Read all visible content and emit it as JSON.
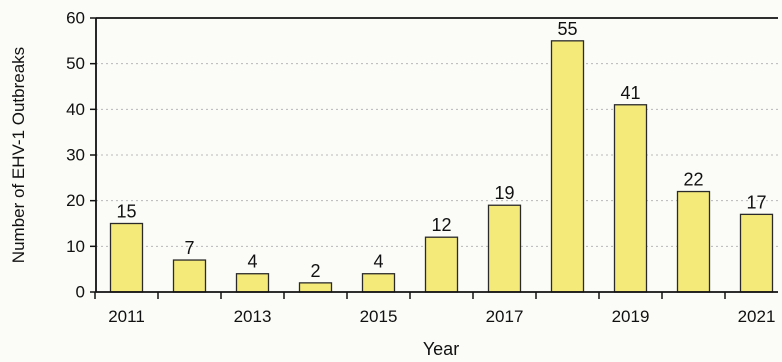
{
  "chart_data": {
    "type": "bar",
    "categories": [
      "2011",
      "2012",
      "2013",
      "2014",
      "2015",
      "2016",
      "2017",
      "2018",
      "2019",
      "2020",
      "2021"
    ],
    "values": [
      15,
      7,
      4,
      2,
      4,
      12,
      19,
      55,
      41,
      22,
      17
    ],
    "data_labels": [
      "15",
      "7",
      "4",
      "2",
      "4",
      "12",
      "19",
      "55",
      "41",
      "22",
      "17"
    ],
    "x_tick_labels": [
      "2011",
      "2013",
      "2015",
      "2017",
      "2019",
      "2021"
    ],
    "y_ticks": [
      0,
      10,
      20,
      30,
      40,
      50,
      60
    ],
    "y_tick_labels": [
      "0",
      "10",
      "20",
      "30",
      "40",
      "50",
      "60"
    ],
    "xlabel": "Year",
    "ylabel": "Number of EHV-1 Outbreaks",
    "ylim": [
      0,
      60
    ],
    "grid": true,
    "grid_axis": "y",
    "legend": "none",
    "colors": {
      "bar_fill": "#f4ea7a",
      "bar_stroke": "#2a2a2a",
      "axis": "#111111",
      "grid": "#b8b8b8",
      "background": "#fbfbf7"
    }
  }
}
